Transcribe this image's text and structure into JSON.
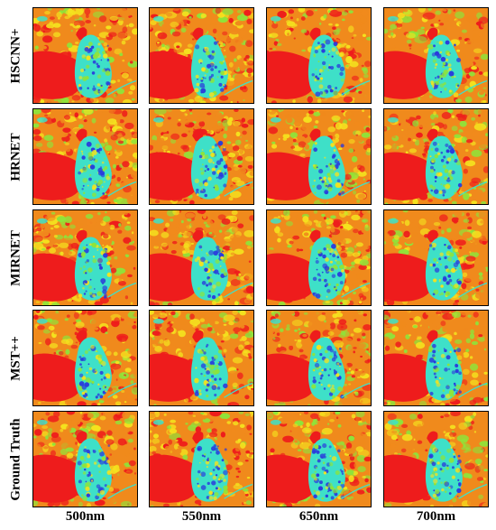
{
  "rows": [
    {
      "label": "HSCNN+"
    },
    {
      "label": "HRNET"
    },
    {
      "label": "MIRNET"
    },
    {
      "label": "MST++"
    },
    {
      "label": "Ground Truth"
    }
  ],
  "columns": [
    {
      "label": "500nm",
      "tone": 0.15
    },
    {
      "label": "550nm",
      "tone": 0.3
    },
    {
      "label": "650nm",
      "tone": 0.5
    },
    {
      "label": "700nm",
      "tone": 0.75
    }
  ],
  "colors": {
    "red": "#ee1c1c",
    "orange": "#f08a1c",
    "yellow": "#f4e21e",
    "green": "#8ee43a",
    "cyan": "#3ee0c8",
    "blue": "#2a3adc",
    "frame": "#000000"
  }
}
